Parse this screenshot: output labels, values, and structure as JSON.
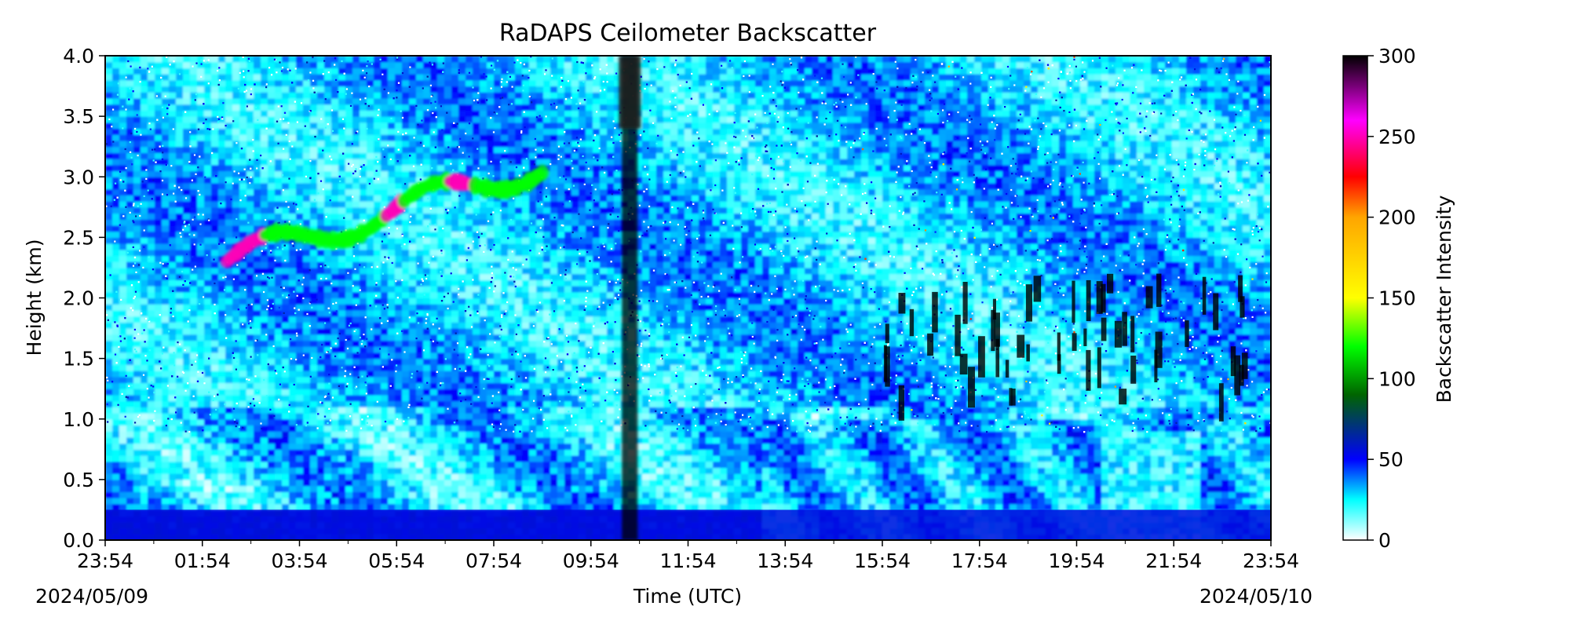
{
  "chart_data": {
    "type": "heatmap",
    "title": "RaDAPS Ceilometer Backscatter",
    "xlabel": "Time (UTC)",
    "ylabel": "Height (km)",
    "x_tick_labels": [
      "23:54",
      "01:54",
      "03:54",
      "05:54",
      "07:54",
      "09:54",
      "11:54",
      "13:54",
      "15:54",
      "17:54",
      "19:54",
      "21:54",
      "23:54"
    ],
    "x_ticks_hours": [
      0,
      2,
      4,
      6,
      8,
      10,
      12,
      14,
      16,
      18,
      20,
      22,
      24
    ],
    "x_minor_ticks_hours": [
      1,
      3,
      5,
      7,
      9,
      11,
      13,
      15,
      17,
      19,
      21,
      23
    ],
    "start_date_label": "2024/05/09",
    "end_date_label": "2024/05/10",
    "ylim": [
      0.0,
      4.0
    ],
    "y_ticks": [
      0.0,
      0.5,
      1.0,
      1.5,
      2.0,
      2.5,
      3.0,
      3.5,
      4.0
    ],
    "y_tick_labels": [
      "0.0",
      "0.5",
      "1.0",
      "1.5",
      "2.0",
      "2.5",
      "3.0",
      "3.5",
      "4.0"
    ],
    "colorbar": {
      "label": "Backscatter Intensity",
      "range": [
        0,
        300
      ],
      "ticks": [
        0,
        50,
        100,
        150,
        200,
        250,
        300
      ],
      "tick_labels": [
        "0",
        "50",
        "100",
        "150",
        "200",
        "250",
        "300"
      ],
      "stops": [
        {
          "value": 0,
          "color": "#ffffff"
        },
        {
          "value": 25,
          "color": "#00ffff"
        },
        {
          "value": 50,
          "color": "#0000ff"
        },
        {
          "value": 90,
          "color": "#006400"
        },
        {
          "value": 120,
          "color": "#00ff00"
        },
        {
          "value": 150,
          "color": "#ffff00"
        },
        {
          "value": 200,
          "color": "#ffa500"
        },
        {
          "value": 225,
          "color": "#ff0000"
        },
        {
          "value": 260,
          "color": "#ff00ff"
        },
        {
          "value": 300,
          "color": "#000000"
        }
      ]
    },
    "features": [
      {
        "kind": "aerosol_layer",
        "start_hour": 2.5,
        "end_hour": 9.0,
        "height_km": [
          2.3,
          3.1
        ],
        "backscatter": 250
      },
      {
        "kind": "precipitation_streak",
        "hour": 10.8,
        "height_km": [
          0.0,
          4.0
        ],
        "backscatter": 300
      },
      {
        "kind": "cloud_base_cluster",
        "start_hour": 16.0,
        "end_hour": 23.6,
        "height_km": [
          1.1,
          2.1
        ],
        "backscatter": 300
      },
      {
        "kind": "surface_layer",
        "start_hour": 0.0,
        "end_hour": 24.0,
        "height_km": [
          0.0,
          0.25
        ],
        "backscatter": 55
      }
    ]
  }
}
